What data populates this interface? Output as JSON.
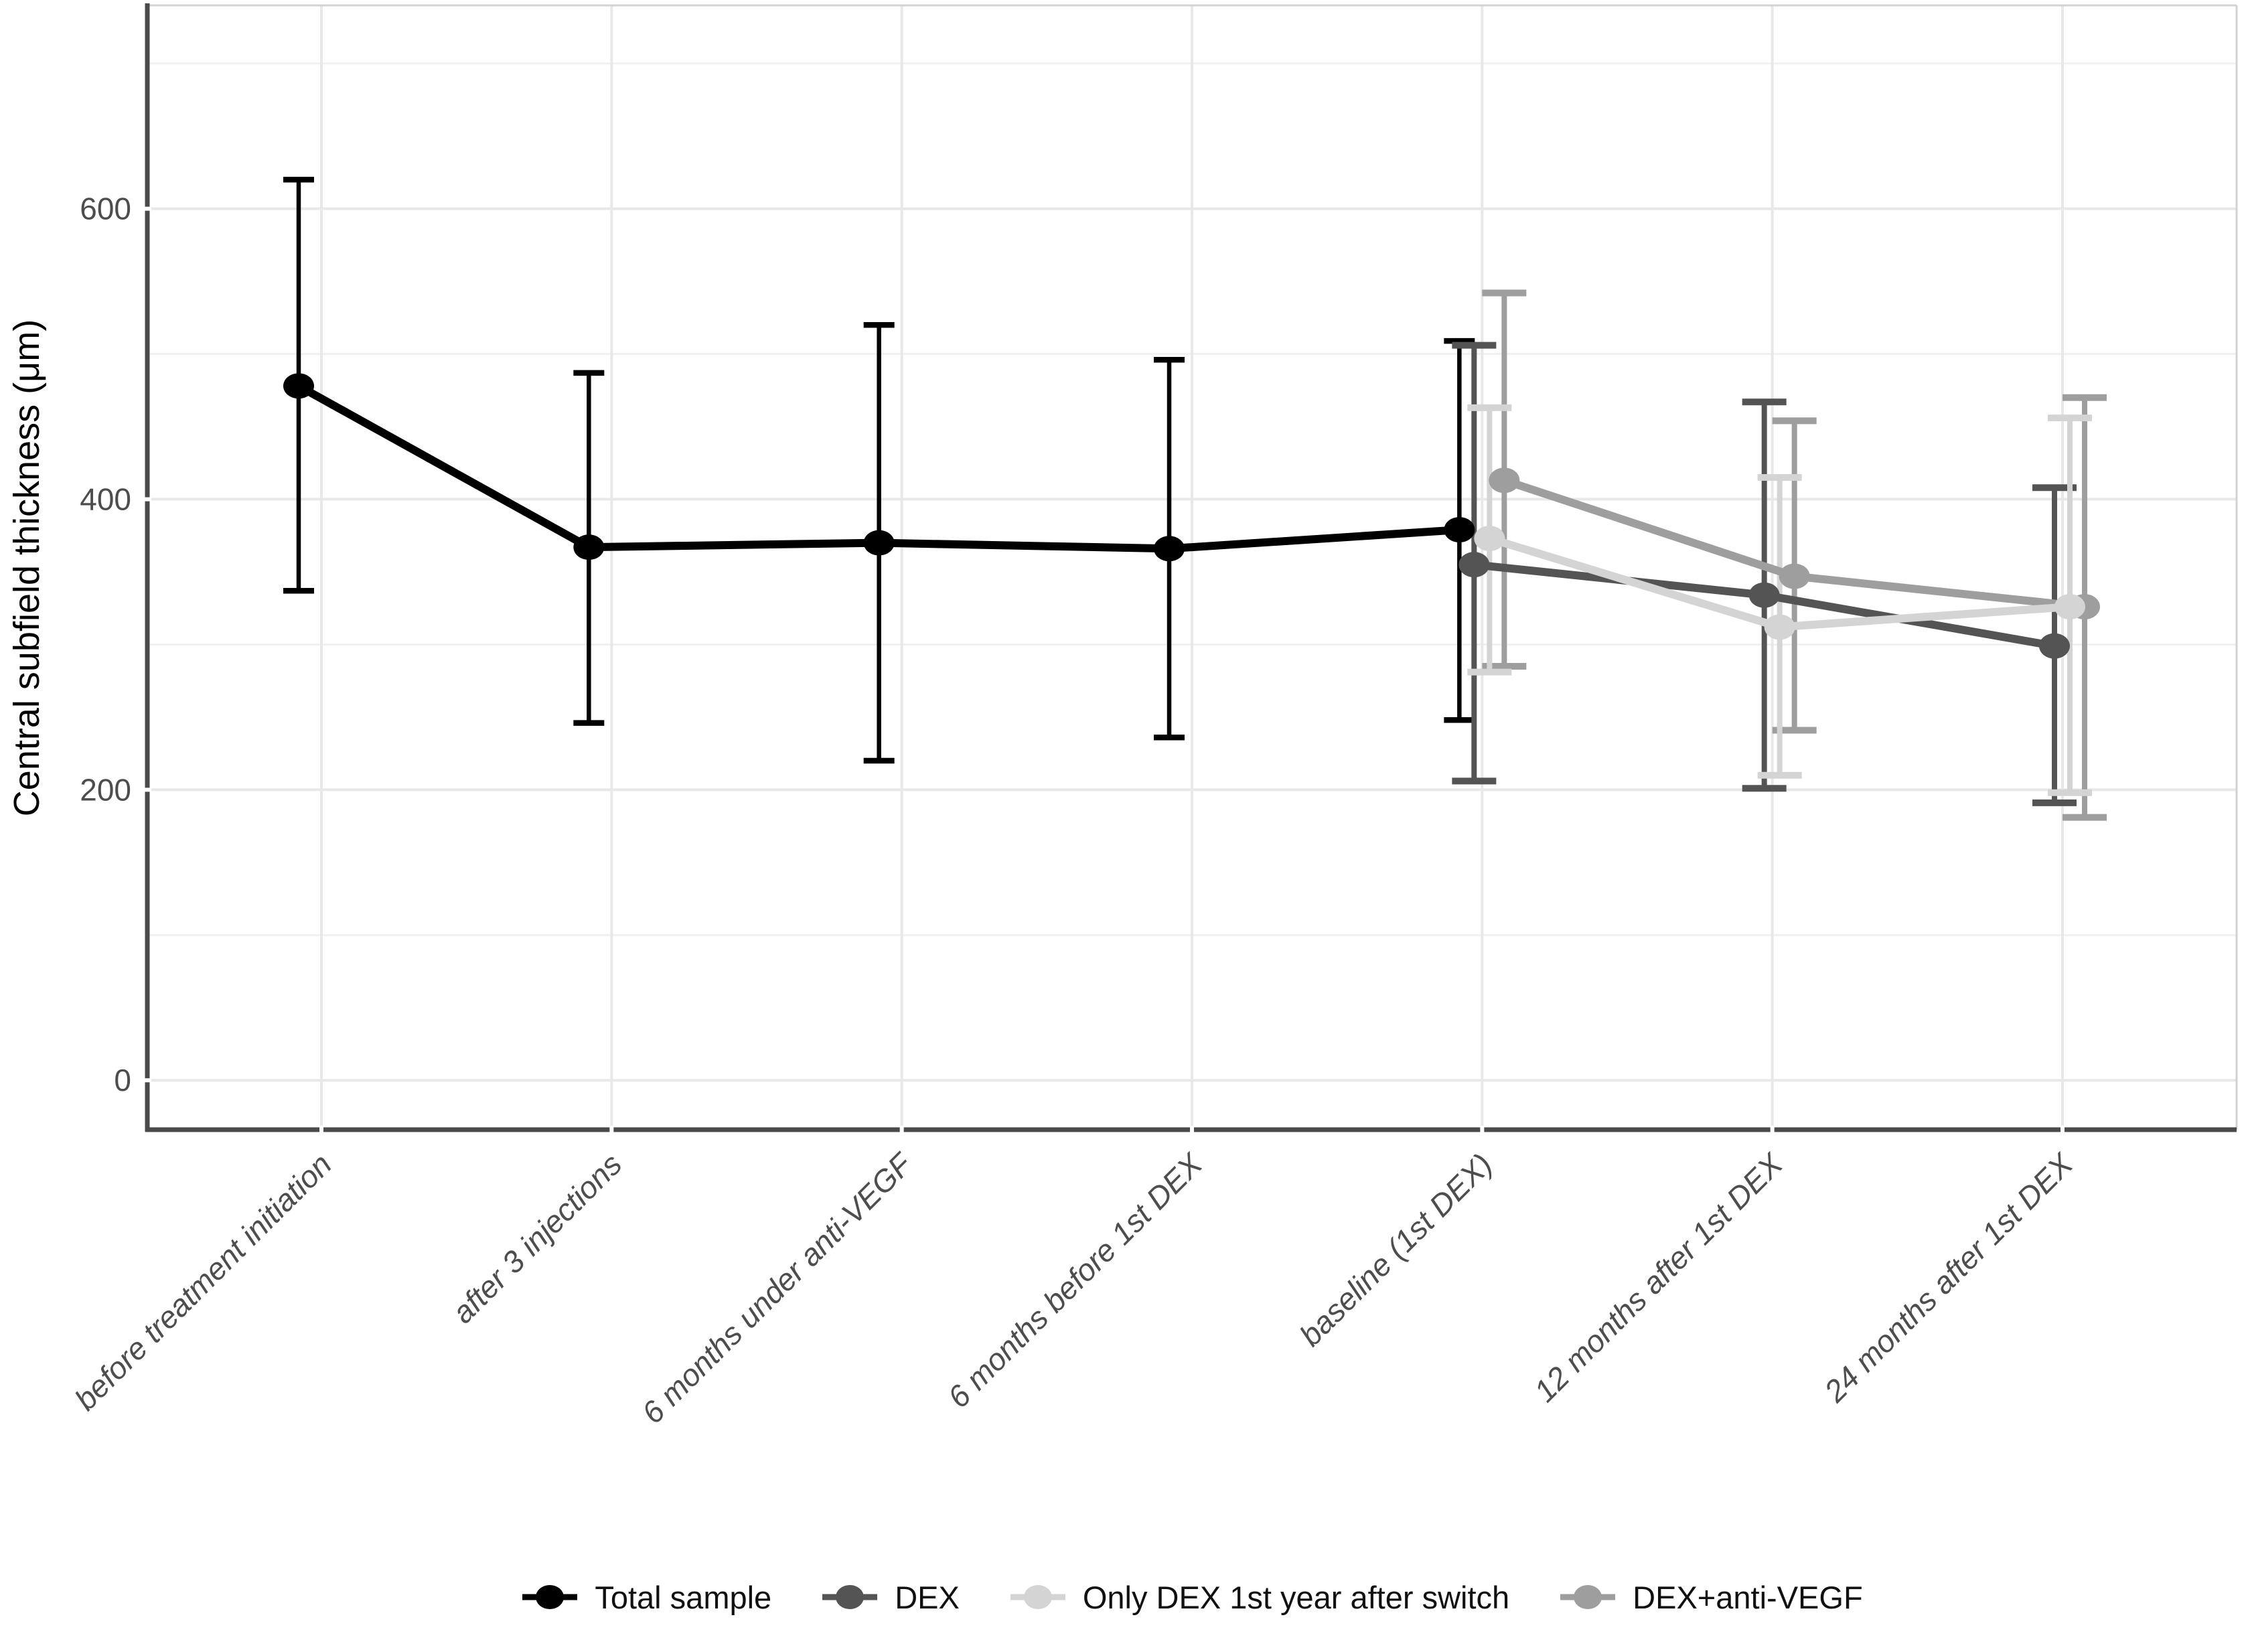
{
  "figure": {
    "kind": "pointrange-line-chart",
    "background": "#ffffff"
  },
  "y_axis": {
    "label": "Central subfield thickness (μm)",
    "tick_labels": [
      "0",
      "200",
      "400",
      "600"
    ],
    "tick_color": "#4d4d4d"
  },
  "x_axis": {
    "tick_color": "#4d4d4d",
    "style": "italic, rotated 45°"
  },
  "legend": {
    "position": "bottom-center",
    "items": [
      "Total sample",
      "DEX",
      "Only DEX 1st year after switch",
      "DEX+anti-VEGF"
    ]
  },
  "chart_data": {
    "type": "line",
    "title": "",
    "xlabel": "",
    "ylabel": "Central subfield thickness (μm)",
    "categories": [
      "before treatment initiation",
      "after 3 injections",
      "6 months under anti-VEGF",
      "6 months before 1st DEX",
      "baseline (1st DEX)",
      "12 months after 1st DEX",
      "24 months after 1st DEX"
    ],
    "y_ticks": [
      0,
      200,
      400,
      600
    ],
    "y_minor_gridlines": [
      100,
      300,
      500,
      700
    ],
    "ylim": [
      -34,
      740
    ],
    "grid": true,
    "legend_position": "bottom",
    "error_bars": "mean ± SD",
    "series": [
      {
        "name": "Total sample",
        "color": "#000000",
        "means": [
          478,
          367,
          370,
          366,
          379,
          null,
          null
        ],
        "lower": [
          337,
          246,
          220,
          236,
          248,
          null,
          null
        ],
        "upper": [
          620,
          487,
          520,
          496,
          509,
          null,
          null
        ]
      },
      {
        "name": "DEX",
        "color": "#545454",
        "means": [
          null,
          null,
          null,
          null,
          355,
          334,
          299
        ],
        "lower": [
          null,
          null,
          null,
          null,
          206,
          201,
          191
        ],
        "upper": [
          null,
          null,
          null,
          null,
          506,
          467,
          408
        ]
      },
      {
        "name": "Only DEX 1st year after switch",
        "color": "#d4d4d4",
        "means": [
          null,
          null,
          null,
          null,
          373,
          312,
          326
        ],
        "lower": [
          null,
          null,
          null,
          null,
          281,
          210,
          198
        ],
        "upper": [
          null,
          null,
          null,
          null,
          463,
          415,
          456
        ]
      },
      {
        "name": "DEX+anti-VEGF",
        "color": "#9e9e9e",
        "means": [
          null,
          null,
          null,
          null,
          413,
          347,
          326
        ],
        "lower": [
          null,
          null,
          null,
          null,
          285,
          241,
          181
        ],
        "upper": [
          null,
          null,
          null,
          null,
          542,
          454,
          470
        ]
      }
    ],
    "colors": {
      "grid_major": "#e8e8e8",
      "grid_minor": "#f1f1f1",
      "axis_line": "#4a4a4a",
      "panel_border_light": "#d2d2d2",
      "tick_label": "#4d4d4d"
    }
  }
}
